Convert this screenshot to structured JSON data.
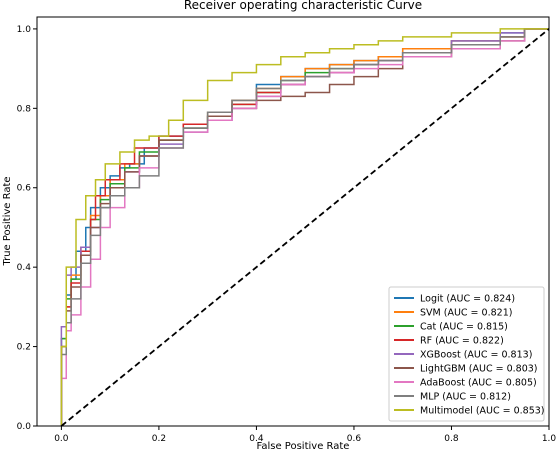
{
  "chart_data": {
    "type": "line",
    "title": "Receiver operating characteristic Curve",
    "xlabel": "False Positive Rate",
    "ylabel": "True Positive Rate",
    "xlim": [
      -0.05,
      1.0
    ],
    "ylim": [
      0.0,
      1.03
    ],
    "x_ticks": [
      "0.0",
      "0.2",
      "0.4",
      "0.6",
      "0.8",
      "1.0"
    ],
    "y_ticks": [
      "0.0",
      "0.2",
      "0.4",
      "0.6",
      "0.8",
      "1.0"
    ],
    "grid": false,
    "legend_position": "lower right",
    "chance_line": {
      "x": [
        0,
        1
      ],
      "y": [
        0,
        1
      ],
      "color": "#000000",
      "style": "dashed"
    },
    "series": [
      {
        "name": "Logit (AUC = 0.824)",
        "color": "#1f77b4",
        "x": [
          0,
          0.01,
          0.02,
          0.03,
          0.05,
          0.06,
          0.08,
          0.1,
          0.12,
          0.14,
          0.17,
          0.2,
          0.25,
          0.3,
          0.35,
          0.4,
          0.45,
          0.5,
          0.55,
          0.6,
          0.65,
          0.7,
          0.8,
          0.9,
          0.95,
          1.0
        ],
        "y": [
          0,
          0.22,
          0.33,
          0.37,
          0.44,
          0.5,
          0.55,
          0.6,
          0.63,
          0.65,
          0.66,
          0.7,
          0.73,
          0.76,
          0.79,
          0.82,
          0.86,
          0.88,
          0.9,
          0.91,
          0.92,
          0.93,
          0.95,
          0.97,
          0.99,
          1.0
        ]
      },
      {
        "name": "SVM (AUC = 0.821)",
        "color": "#ff7f0e",
        "x": [
          0,
          0.01,
          0.02,
          0.04,
          0.06,
          0.08,
          0.1,
          0.13,
          0.16,
          0.2,
          0.25,
          0.3,
          0.35,
          0.4,
          0.45,
          0.5,
          0.55,
          0.6,
          0.65,
          0.7,
          0.8,
          0.9,
          0.95,
          1.0
        ],
        "y": [
          0,
          0.2,
          0.3,
          0.38,
          0.45,
          0.53,
          0.58,
          0.62,
          0.66,
          0.68,
          0.72,
          0.76,
          0.79,
          0.82,
          0.85,
          0.88,
          0.9,
          0.91,
          0.92,
          0.93,
          0.95,
          0.97,
          0.98,
          1.0
        ]
      },
      {
        "name": "Cat (AUC = 0.815)",
        "color": "#2ca02c",
        "x": [
          0,
          0.01,
          0.02,
          0.04,
          0.06,
          0.08,
          0.1,
          0.13,
          0.16,
          0.2,
          0.25,
          0.3,
          0.35,
          0.4,
          0.45,
          0.5,
          0.55,
          0.6,
          0.65,
          0.7,
          0.8,
          0.9,
          0.95,
          1.0
        ],
        "y": [
          0,
          0.22,
          0.32,
          0.37,
          0.44,
          0.52,
          0.57,
          0.61,
          0.65,
          0.69,
          0.72,
          0.75,
          0.78,
          0.81,
          0.84,
          0.87,
          0.89,
          0.9,
          0.91,
          0.92,
          0.94,
          0.96,
          0.98,
          1.0
        ]
      },
      {
        "name": "RF (AUC = 0.822)",
        "color": "#d62728",
        "x": [
          0,
          0.01,
          0.02,
          0.04,
          0.06,
          0.07,
          0.09,
          0.12,
          0.15,
          0.2,
          0.25,
          0.3,
          0.35,
          0.4,
          0.45,
          0.5,
          0.55,
          0.6,
          0.65,
          0.7,
          0.8,
          0.9,
          0.95,
          1.0
        ],
        "y": [
          0,
          0.2,
          0.3,
          0.36,
          0.44,
          0.52,
          0.58,
          0.62,
          0.66,
          0.7,
          0.73,
          0.76,
          0.78,
          0.81,
          0.84,
          0.86,
          0.88,
          0.89,
          0.91,
          0.92,
          0.94,
          0.96,
          0.98,
          1.0
        ]
      },
      {
        "name": "XGBoost (AUC = 0.813)",
        "color": "#9467bd",
        "x": [
          0,
          0.01,
          0.02,
          0.04,
          0.06,
          0.08,
          0.1,
          0.13,
          0.16,
          0.2,
          0.25,
          0.3,
          0.35,
          0.4,
          0.45,
          0.5,
          0.55,
          0.6,
          0.65,
          0.7,
          0.8,
          0.9,
          0.95,
          1.0
        ],
        "y": [
          0,
          0.25,
          0.38,
          0.4,
          0.45,
          0.5,
          0.55,
          0.6,
          0.64,
          0.68,
          0.71,
          0.74,
          0.77,
          0.8,
          0.83,
          0.86,
          0.88,
          0.89,
          0.91,
          0.92,
          0.94,
          0.97,
          0.99,
          1.0
        ]
      },
      {
        "name": "LightGBM (AUC = 0.803)",
        "color": "#8c564b",
        "x": [
          0,
          0.01,
          0.02,
          0.04,
          0.06,
          0.08,
          0.1,
          0.13,
          0.16,
          0.2,
          0.25,
          0.3,
          0.35,
          0.4,
          0.45,
          0.5,
          0.55,
          0.6,
          0.65,
          0.7,
          0.8,
          0.9,
          0.95,
          1.0
        ],
        "y": [
          0,
          0.2,
          0.29,
          0.35,
          0.43,
          0.5,
          0.56,
          0.6,
          0.64,
          0.68,
          0.72,
          0.75,
          0.78,
          0.8,
          0.82,
          0.83,
          0.84,
          0.86,
          0.88,
          0.9,
          0.93,
          0.95,
          0.97,
          1.0
        ]
      },
      {
        "name": "AdaBoost (AUC = 0.805)",
        "color": "#e377c2",
        "x": [
          0,
          0.01,
          0.02,
          0.04,
          0.06,
          0.08,
          0.1,
          0.13,
          0.16,
          0.2,
          0.25,
          0.3,
          0.35,
          0.4,
          0.45,
          0.5,
          0.55,
          0.6,
          0.65,
          0.7,
          0.8,
          0.9,
          0.95,
          1.0
        ],
        "y": [
          0,
          0.12,
          0.24,
          0.28,
          0.35,
          0.42,
          0.5,
          0.55,
          0.6,
          0.65,
          0.7,
          0.74,
          0.77,
          0.8,
          0.83,
          0.86,
          0.88,
          0.89,
          0.9,
          0.91,
          0.93,
          0.95,
          0.97,
          1.0
        ]
      },
      {
        "name": "MLP (AUC = 0.812)",
        "color": "#7f7f7f",
        "x": [
          0,
          0.01,
          0.02,
          0.04,
          0.06,
          0.08,
          0.1,
          0.13,
          0.16,
          0.2,
          0.25,
          0.3,
          0.35,
          0.4,
          0.45,
          0.5,
          0.55,
          0.6,
          0.65,
          0.7,
          0.8,
          0.9,
          0.95,
          1.0
        ],
        "y": [
          0,
          0.18,
          0.26,
          0.32,
          0.41,
          0.48,
          0.55,
          0.58,
          0.6,
          0.63,
          0.7,
          0.75,
          0.79,
          0.82,
          0.85,
          0.87,
          0.88,
          0.9,
          0.91,
          0.92,
          0.94,
          0.96,
          0.98,
          1.0
        ]
      },
      {
        "name": "Multimodel (AUC = 0.853)",
        "color": "#bcbd22",
        "x": [
          0,
          0.01,
          0.03,
          0.05,
          0.07,
          0.09,
          0.12,
          0.15,
          0.18,
          0.22,
          0.25,
          0.3,
          0.35,
          0.4,
          0.45,
          0.5,
          0.55,
          0.6,
          0.65,
          0.7,
          0.75,
          0.8,
          0.9,
          0.95,
          1.0
        ],
        "y": [
          0,
          0.2,
          0.4,
          0.52,
          0.58,
          0.62,
          0.66,
          0.69,
          0.72,
          0.73,
          0.77,
          0.82,
          0.87,
          0.89,
          0.91,
          0.93,
          0.94,
          0.95,
          0.96,
          0.97,
          0.98,
          0.98,
          0.99,
          1.0,
          1.0
        ]
      }
    ]
  }
}
